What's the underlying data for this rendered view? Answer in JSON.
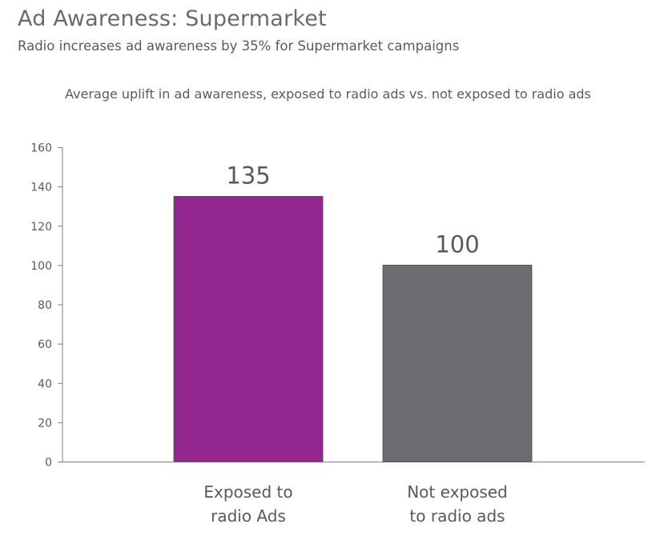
{
  "header": {
    "title": "Ad Awareness: Supermarket",
    "subtitle": "Radio increases ad awareness by 35% for Supermarket campaigns"
  },
  "chart_data": {
    "type": "bar",
    "title": "Average uplift in ad awareness, exposed to radio ads vs. not exposed to radio ads",
    "categories": [
      [
        "Exposed to",
        "radio Ads"
      ],
      [
        "Not exposed",
        "to radio ads"
      ]
    ],
    "values": [
      135,
      100
    ],
    "data_labels": [
      "135",
      "100"
    ],
    "colors": [
      "#93268f",
      "#6d6d71"
    ],
    "ylim": [
      0,
      160
    ],
    "yticks": [
      0,
      20,
      40,
      60,
      80,
      100,
      120,
      140,
      160
    ],
    "xlabel": "",
    "ylabel": "",
    "grid": false,
    "legend": "none"
  }
}
